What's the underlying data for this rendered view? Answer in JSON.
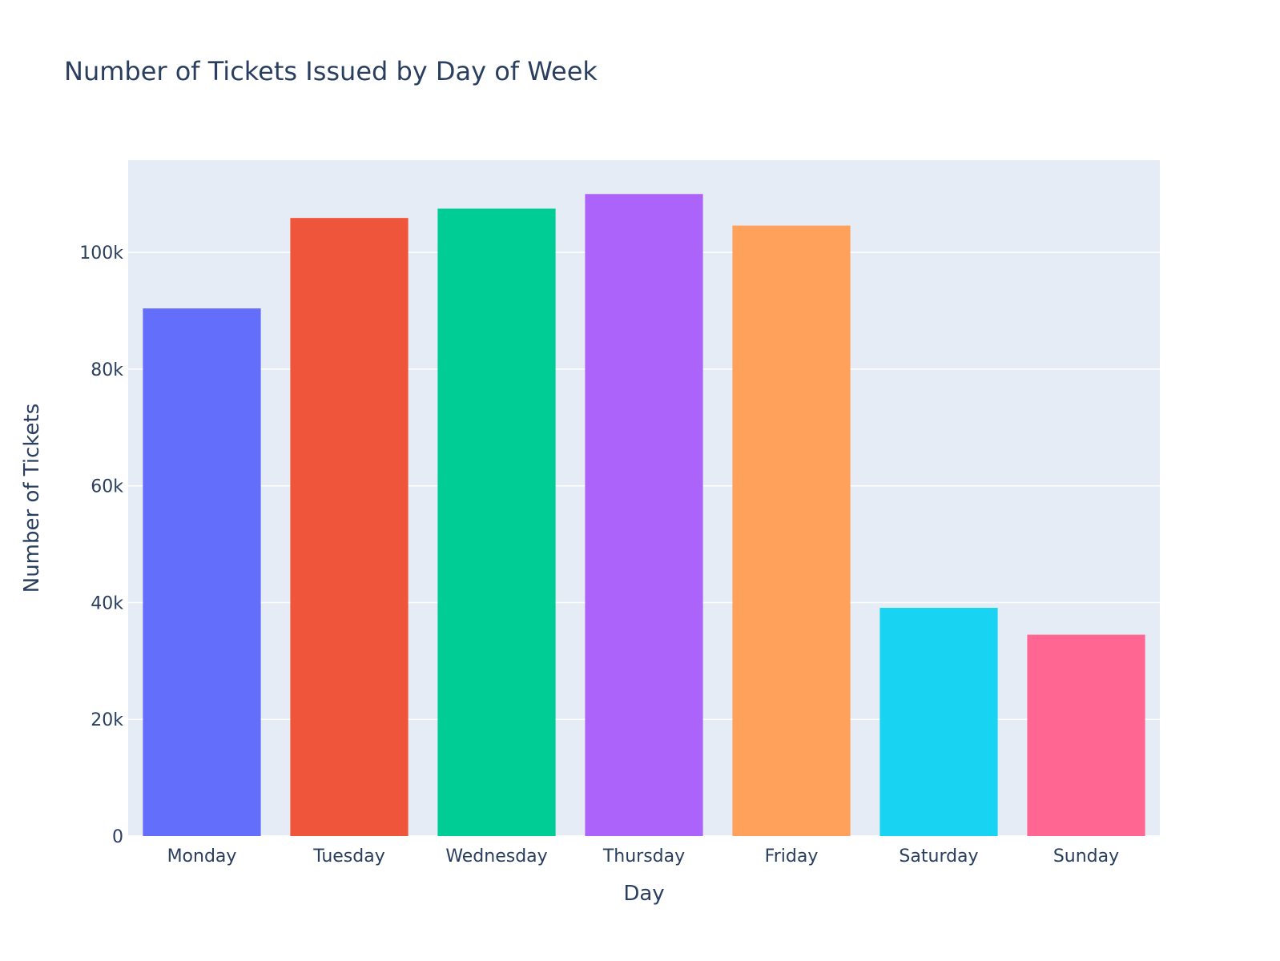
{
  "chart_data": {
    "type": "bar",
    "title": "Number of Tickets Issued by Day of Week",
    "xlabel": "Day",
    "ylabel": "Number of Tickets",
    "categories": [
      "Monday",
      "Tuesday",
      "Wednesday",
      "Thursday",
      "Friday",
      "Saturday",
      "Sunday"
    ],
    "values": [
      90400,
      105900,
      107500,
      110000,
      104600,
      39100,
      34500
    ],
    "colors": [
      "#636efa",
      "#ef553b",
      "#00cc96",
      "#ab63fa",
      "#ffa15a",
      "#19d3f3",
      "#ff6692"
    ],
    "ylim": [
      0,
      115800
    ],
    "yticks": [
      0,
      20000,
      40000,
      60000,
      80000,
      100000
    ],
    "ytick_labels": [
      "0",
      "20k",
      "40k",
      "60k",
      "80k",
      "100k"
    ],
    "grid": true,
    "legend": "none",
    "plot_background": "#e5ecf6",
    "grid_color": "#ffffff",
    "text_color": "#2a3f5f"
  }
}
